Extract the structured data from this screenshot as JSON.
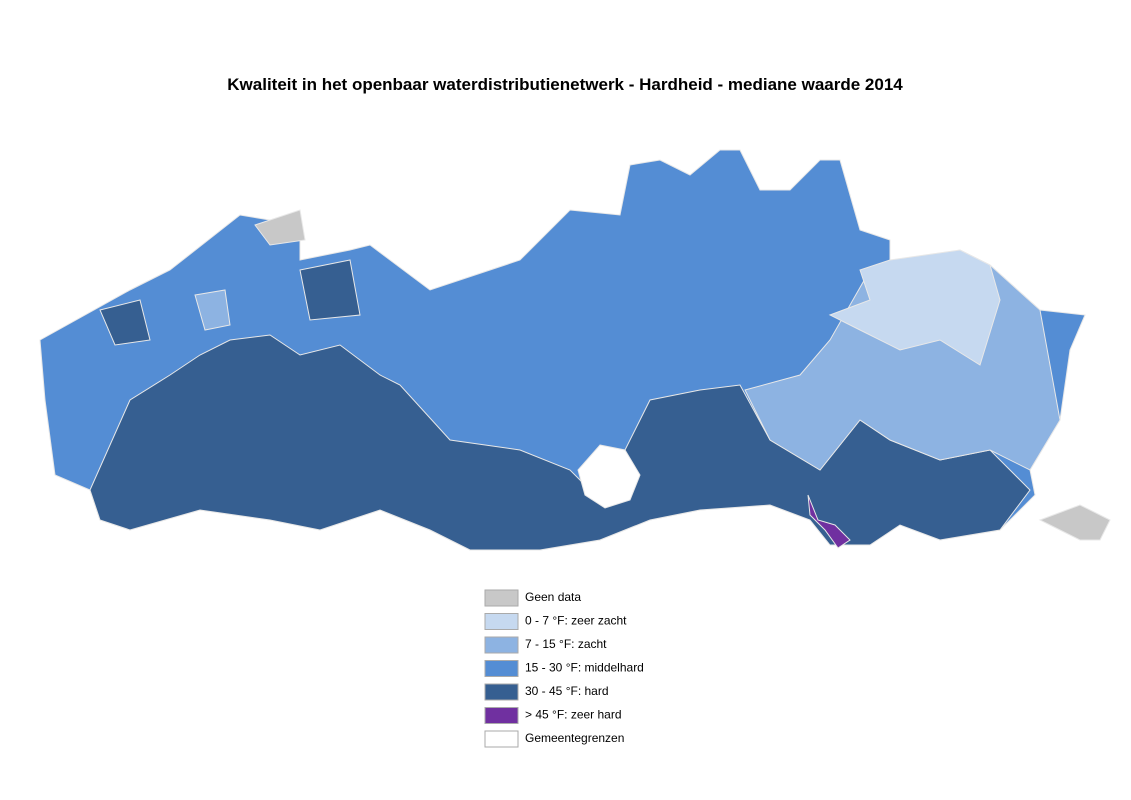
{
  "title": "Kwaliteit in het openbaar waterdistributienetwerk - Hardheid - mediane waarde 2014",
  "legend": [
    {
      "label": "Geen data",
      "color": "#c8c8c8"
    },
    {
      "label": "0 - 7 °F: zeer zacht",
      "color": "#c6d9f0"
    },
    {
      "label": "7 - 15 °F: zacht",
      "color": "#8db3e2"
    },
    {
      "label": "15 - 30 °F: middelhard",
      "color": "#548dd4"
    },
    {
      "label": "30 - 45 °F: hard",
      "color": "#365f91"
    },
    {
      "label": "> 45 °F: zeer hard",
      "color": "#7030a0"
    },
    {
      "label": "Gemeentegrenzen",
      "color": "#ffffff"
    }
  ]
}
